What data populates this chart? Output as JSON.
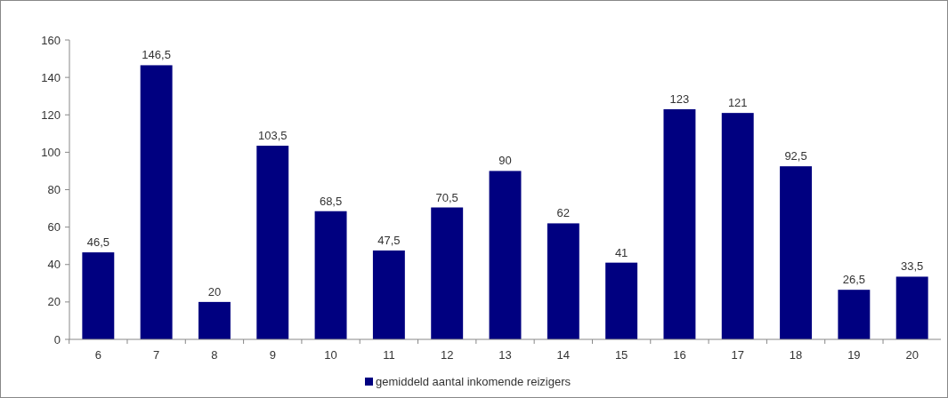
{
  "chart_data": {
    "type": "bar",
    "categories": [
      "6",
      "7",
      "8",
      "9",
      "10",
      "11",
      "12",
      "13",
      "14",
      "15",
      "16",
      "17",
      "18",
      "19",
      "20"
    ],
    "series": [
      {
        "name": "gemiddeld aantal inkomende reizigers",
        "color": "#000080",
        "values": [
          46.5,
          146.5,
          20,
          103.5,
          68.5,
          47.5,
          70.5,
          90,
          62,
          41,
          123,
          121,
          92.5,
          26.5,
          33.5
        ],
        "value_labels": [
          "46,5",
          "146,5",
          "20",
          "103,5",
          "68,5",
          "47,5",
          "70,5",
          "90",
          "62",
          "41",
          "123",
          "121",
          "92,5",
          "26,5",
          "33,5"
        ]
      }
    ],
    "ylim": [
      0,
      160
    ],
    "yticks": [
      0,
      20,
      40,
      60,
      80,
      100,
      120,
      140,
      160
    ],
    "grid": false,
    "legend": "bottom"
  }
}
